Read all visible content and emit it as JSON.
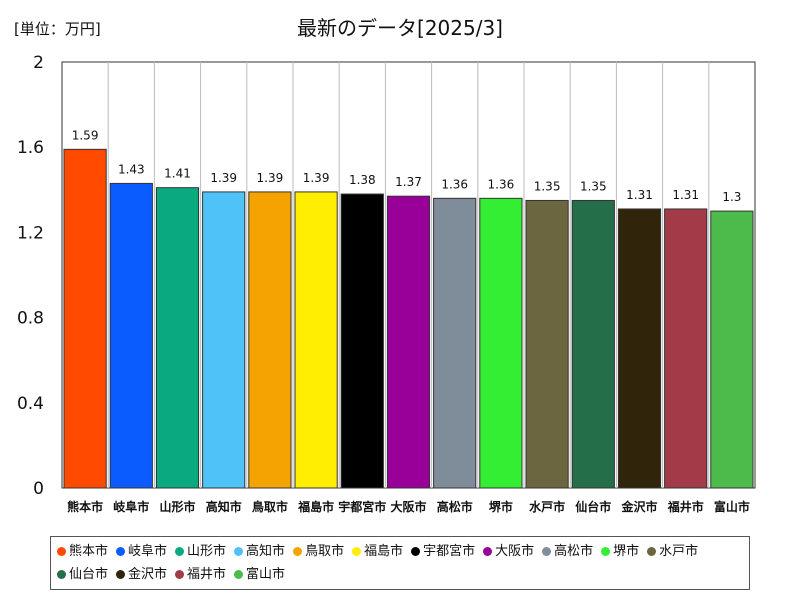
{
  "chart_data": {
    "type": "bar",
    "title": "最新のデータ[2025/3]",
    "unit_label": "[単位：万円]",
    "categories": [
      "熊本市",
      "岐阜市",
      "山形市",
      "高知市",
      "鳥取市",
      "福島市",
      "宇都宮市",
      "大阪市",
      "高松市",
      "堺市",
      "水戸市",
      "仙台市",
      "金沢市",
      "福井市",
      "富山市"
    ],
    "values": [
      1.59,
      1.43,
      1.41,
      1.39,
      1.39,
      1.39,
      1.38,
      1.37,
      1.36,
      1.36,
      1.35,
      1.35,
      1.31,
      1.31,
      1.3
    ],
    "value_labels": [
      "1.59",
      "1.43",
      "1.41",
      "1.39",
      "1.39",
      "1.39",
      "1.38",
      "1.37",
      "1.36",
      "1.36",
      "1.35",
      "1.35",
      "1.31",
      "1.31",
      "1.3"
    ],
    "colors": [
      "#ff4a00",
      "#0b5cff",
      "#0aaa80",
      "#4fc3f7",
      "#f5a300",
      "#ffee00",
      "#000000",
      "#990099",
      "#7f8c99",
      "#33ee33",
      "#6b6640",
      "#256e4a",
      "#30240a",
      "#a33a48",
      "#4cbb4c"
    ],
    "ylim": [
      0,
      2
    ],
    "y_ticks": [
      "0",
      "0.4",
      "0.8",
      "1.2",
      "1.6",
      "2"
    ],
    "grid": "vertical",
    "legend": "bottom"
  }
}
